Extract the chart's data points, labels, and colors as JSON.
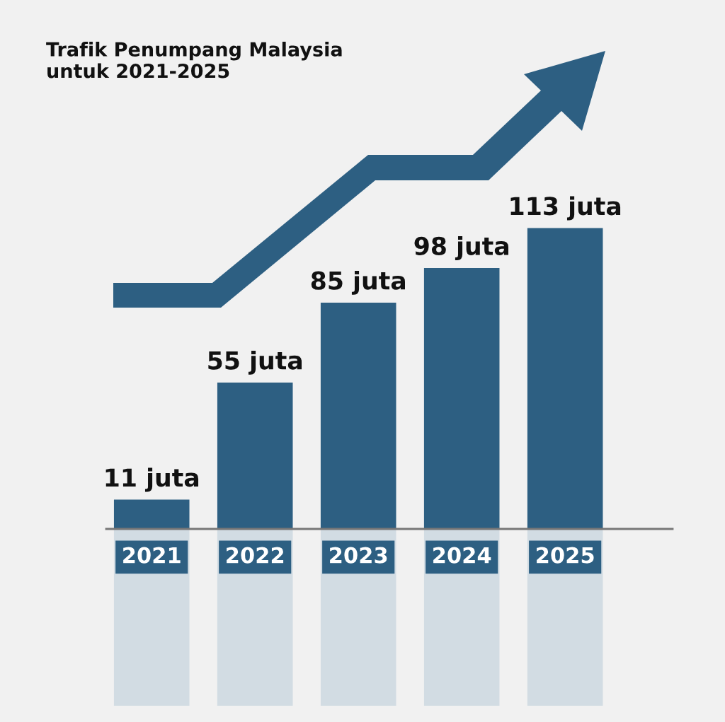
{
  "chart_data": {
    "type": "bar",
    "title": "Trafik Penumpang Malaysia\nuntuk 2021-2025",
    "categories": [
      "2021",
      "2022",
      "2023",
      "2024",
      "2025"
    ],
    "values": [
      11,
      55,
      85,
      98,
      113
    ],
    "color": "#2d5f82",
    "value_labels": [
      "11 juta",
      "55 juta",
      "85 juta",
      "98 juta",
      "113 juta"
    ]
  }
}
